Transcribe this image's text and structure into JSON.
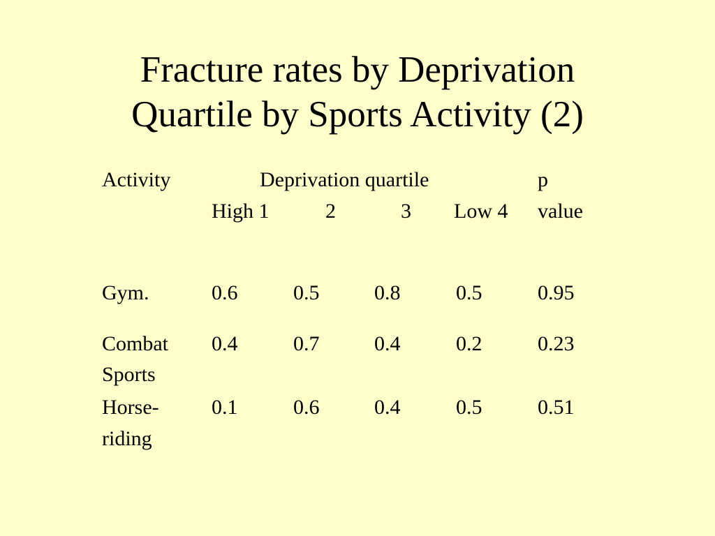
{
  "title": {
    "line1": "Fracture rates by Deprivation",
    "line2": "Quartile by Sports Activity (2)"
  },
  "table": {
    "header": {
      "activity": "Activity",
      "quartile_group": "Deprivation quartile",
      "p_line1": "p",
      "quartiles": [
        "High 1",
        "2",
        "3",
        "Low 4"
      ],
      "p_line2": "value"
    },
    "rows": [
      {
        "activity_line1": "Gym.",
        "activity_line2": "",
        "values": [
          "0.6",
          "0.5",
          "0.8",
          "0.5"
        ],
        "p_value": "0.95"
      },
      {
        "activity_line1": "Combat",
        "activity_line2": "Sports",
        "values": [
          "0.4",
          "0.7",
          "0.4",
          "0.2"
        ],
        "p_value": "0.23"
      },
      {
        "activity_line1": "Horse-",
        "activity_line2": "riding",
        "values": [
          "0.1",
          "0.6",
          "0.4",
          "0.5"
        ],
        "p_value": "0.51"
      }
    ]
  }
}
